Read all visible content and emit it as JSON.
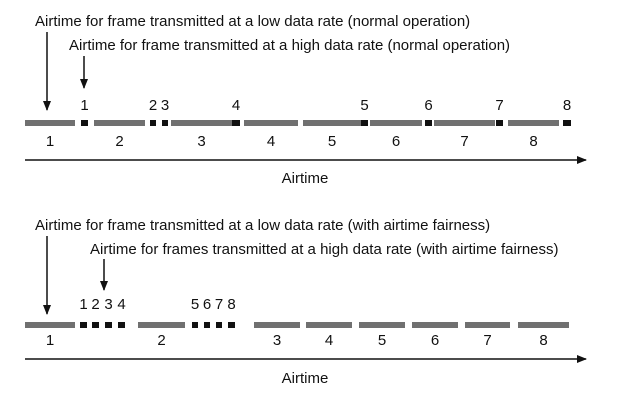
{
  "colors": {
    "ink": "#111111",
    "low_bar": "#707070",
    "high_bar": "#111111"
  },
  "diagrams": [
    {
      "label_low": "Airtime for frame transmitted at a low data rate (normal operation)",
      "label_high": "Airtime for frame transmitted at a high data rate (normal operation)",
      "axis_label": "Airtime",
      "low_frames": [
        "1",
        "2",
        "3",
        "4",
        "5",
        "6",
        "7",
        "8"
      ],
      "high_frames": [
        "1",
        "2",
        "3",
        "4",
        "5",
        "6",
        "7",
        "8"
      ]
    },
    {
      "label_low": "Airtime for frame transmitted at a low data rate (with airtime fairness)",
      "label_high": "Airtime for frames transmitted at a high data rate (with airtime fairness)",
      "axis_label": "Airtime",
      "low_frames": [
        "1",
        "2",
        "3",
        "4",
        "5",
        "6",
        "7",
        "8"
      ],
      "high_frames": [
        "1",
        "2",
        "3",
        "4",
        "5",
        "6",
        "7",
        "8"
      ]
    }
  ]
}
